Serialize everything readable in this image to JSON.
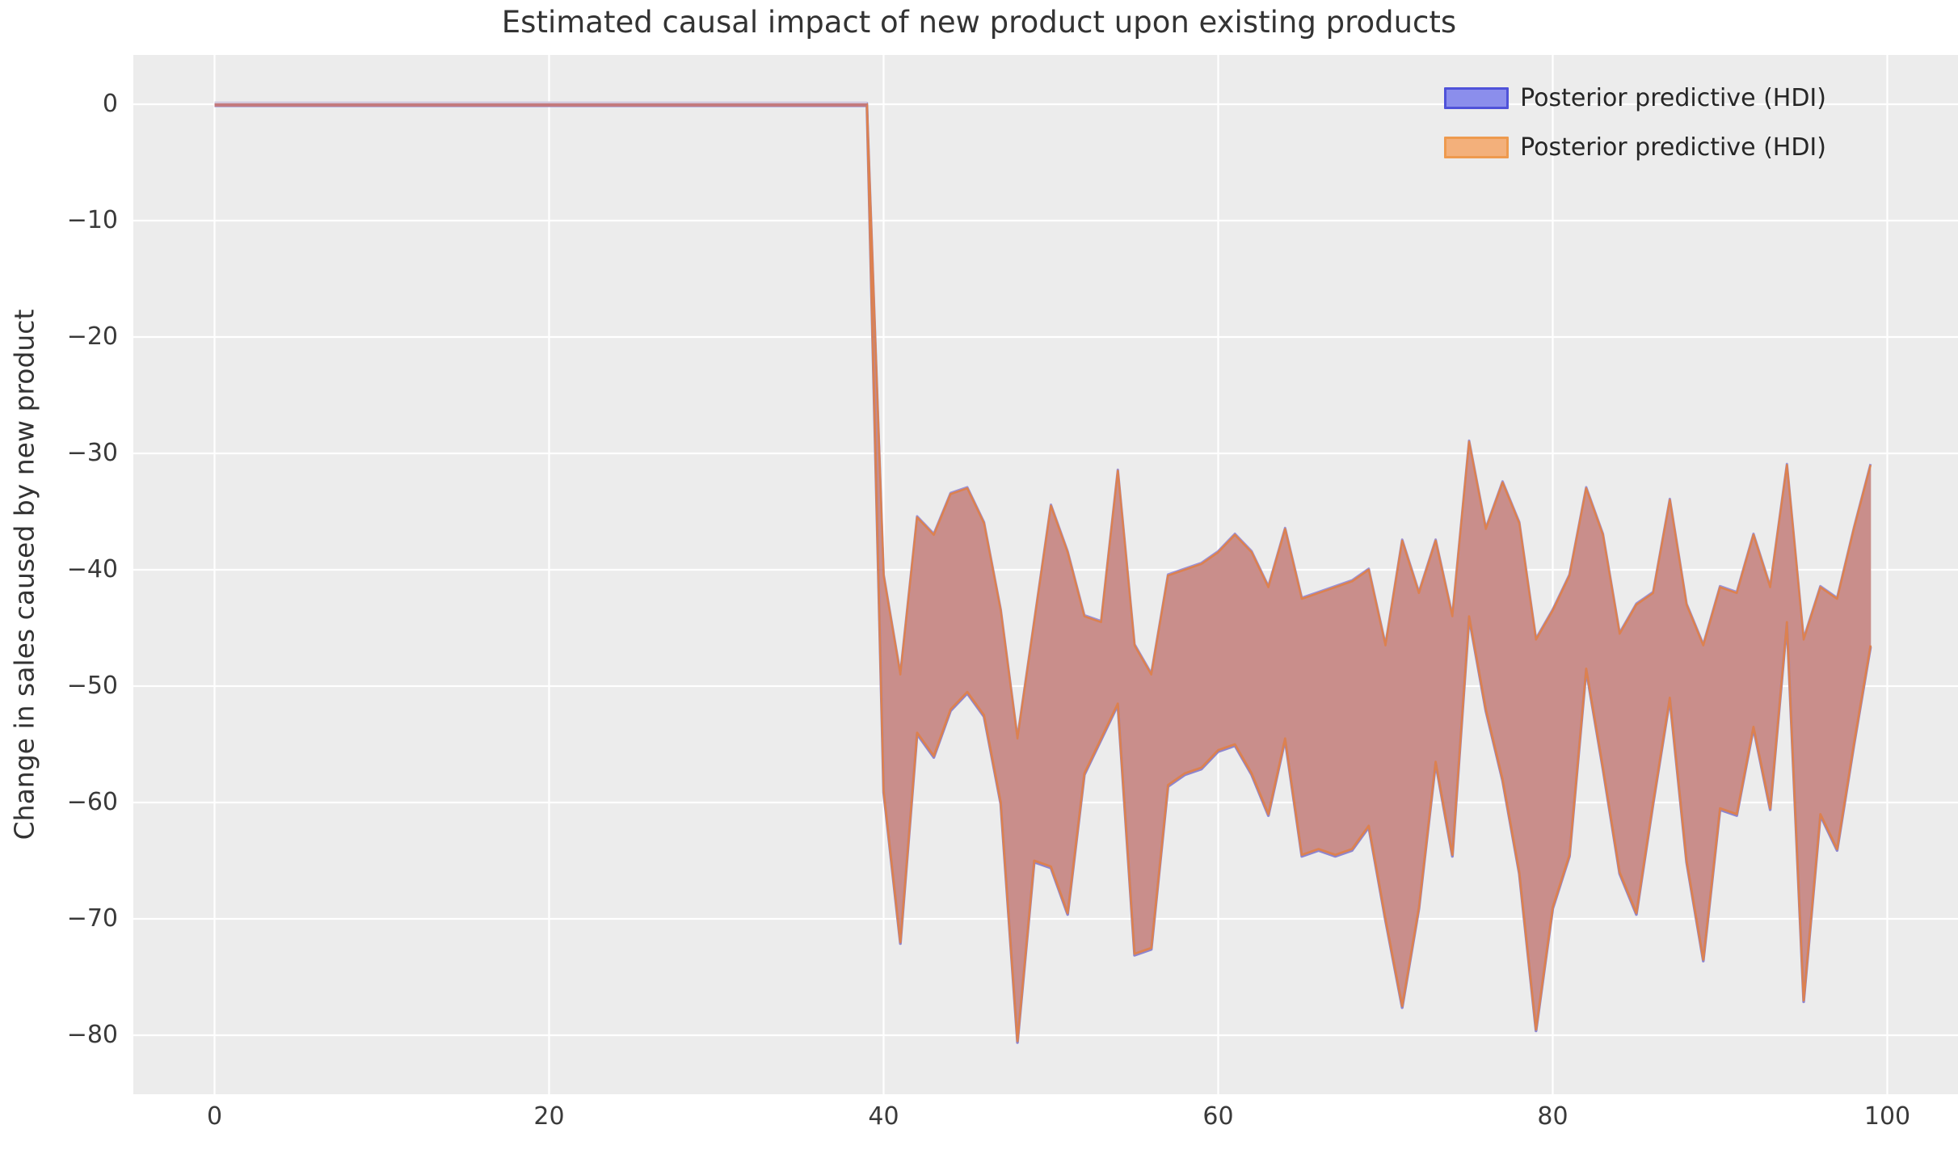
{
  "title": "Estimated causal impact of new product upon existing products",
  "ylabel": "Change in sales caused by new product",
  "legend": {
    "position": "upper right",
    "items": [
      {
        "label": "Posterior predictive (HDI)",
        "fill": "#8b8eec",
        "border": "#4f52d9"
      },
      {
        "label": "Posterior predictive (HDI)",
        "fill": "#f3b07b",
        "border": "#ee9a4e"
      }
    ]
  },
  "axes": {
    "x_ticks": [
      {
        "v": 0,
        "label": "0"
      },
      {
        "v": 20,
        "label": "20"
      },
      {
        "v": 40,
        "label": "40"
      },
      {
        "v": 60,
        "label": "60"
      },
      {
        "v": 80,
        "label": "80"
      },
      {
        "v": 100,
        "label": "100"
      }
    ],
    "y_ticks": [
      {
        "v": 0,
        "label": "0"
      },
      {
        "v": -10,
        "label": "−10"
      },
      {
        "v": -20,
        "label": "−20"
      },
      {
        "v": -30,
        "label": "−30"
      },
      {
        "v": -40,
        "label": "−40"
      },
      {
        "v": -50,
        "label": "−50"
      },
      {
        "v": -60,
        "label": "−60"
      },
      {
        "v": -70,
        "label": "−70"
      },
      {
        "v": -80,
        "label": "−80"
      }
    ],
    "xlim": [
      -4.9,
      104.7
    ],
    "ylim": [
      -85.5,
      4.5
    ],
    "grid": true
  },
  "style_colors": {
    "figure_background": "#ffffff",
    "axes_background": "#ececec",
    "gridline": "#ffffff",
    "band_fill": "#c98e8b",
    "band_edge_orange": "#dc8150",
    "band_edge_blue": "#9a92d8",
    "band_edge_blue_lower": "#8d85cf",
    "pre_line_red": "#c4797c",
    "pre_line_lavender": "#d2cbdf",
    "text": "#333333",
    "tick_text": "#3a3a3a"
  },
  "chart_data": {
    "type": "area",
    "title": "Estimated causal impact of new product upon existing products",
    "xlabel": "",
    "ylabel": "Change in sales caused by new product",
    "legend_entries": [
      "Posterior predictive (HDI)",
      "Posterior predictive (HDI)"
    ],
    "legend_position": "upper right",
    "grid": true,
    "x_start": 0,
    "x_step": 1,
    "count": 100,
    "treatment_time": 40,
    "pre_treatment_value": 0,
    "series": [
      {
        "name": "Posterior predictive (HDI) upper bound",
        "values": [
          0,
          0,
          0,
          0,
          0,
          0,
          0,
          0,
          0,
          0,
          0,
          0,
          0,
          0,
          0,
          0,
          0,
          0,
          0,
          0,
          0,
          0,
          0,
          0,
          0,
          0,
          0,
          0,
          0,
          0,
          0,
          0,
          0,
          0,
          0,
          0,
          0,
          0,
          0,
          0,
          -40.5,
          -49,
          -35.5,
          -37,
          -33.5,
          -33,
          -36,
          -43.5,
          -54.5,
          -44.5,
          -34.5,
          -38.5,
          -44,
          -44.5,
          -31.5,
          -46.5,
          -49,
          -40.5,
          -40,
          -39.5,
          -38.5,
          -37,
          -38.5,
          -41.5,
          -36.5,
          -42.5,
          -42,
          -41.5,
          -41,
          -40,
          -46.5,
          -37.5,
          -42,
          -37.5,
          -44,
          -29,
          -36.5,
          -32.5,
          -36,
          -46,
          -43.5,
          -40.5,
          -33,
          -37,
          -45.5,
          -43,
          -42,
          -34,
          -43,
          -46.5,
          -41.5,
          -42,
          -37,
          -41.5,
          -31,
          -46,
          -41.5,
          -42.5,
          -36.5,
          -31
        ]
      },
      {
        "name": "Posterior predictive (HDI) lower bound",
        "values": [
          0,
          0,
          0,
          0,
          0,
          0,
          0,
          0,
          0,
          0,
          0,
          0,
          0,
          0,
          0,
          0,
          0,
          0,
          0,
          0,
          0,
          0,
          0,
          0,
          0,
          0,
          0,
          0,
          0,
          0,
          0,
          0,
          0,
          0,
          0,
          0,
          0,
          0,
          0,
          0,
          -59,
          -72,
          -54,
          -56,
          -52,
          -50.5,
          -52.5,
          -60,
          -80.5,
          -65,
          -65.5,
          -69.5,
          -57.5,
          -54.5,
          -51.5,
          -73,
          -72.5,
          -58.5,
          -57.5,
          -57,
          -55.5,
          -55,
          -57.5,
          -61,
          -54.5,
          -64.5,
          -64,
          -64.5,
          -64,
          -62,
          -70,
          -77.5,
          -69,
          -56.5,
          -64.5,
          -44,
          -52,
          -58,
          -66,
          -79.5,
          -69,
          -64.5,
          -48.5,
          -57,
          -66,
          -69.5,
          -60,
          -51,
          -65,
          -73.5,
          -60.5,
          -61,
          -53.5,
          -60.5,
          -44.5,
          -77,
          -61,
          -64,
          -55,
          -46.5
        ]
      }
    ]
  }
}
